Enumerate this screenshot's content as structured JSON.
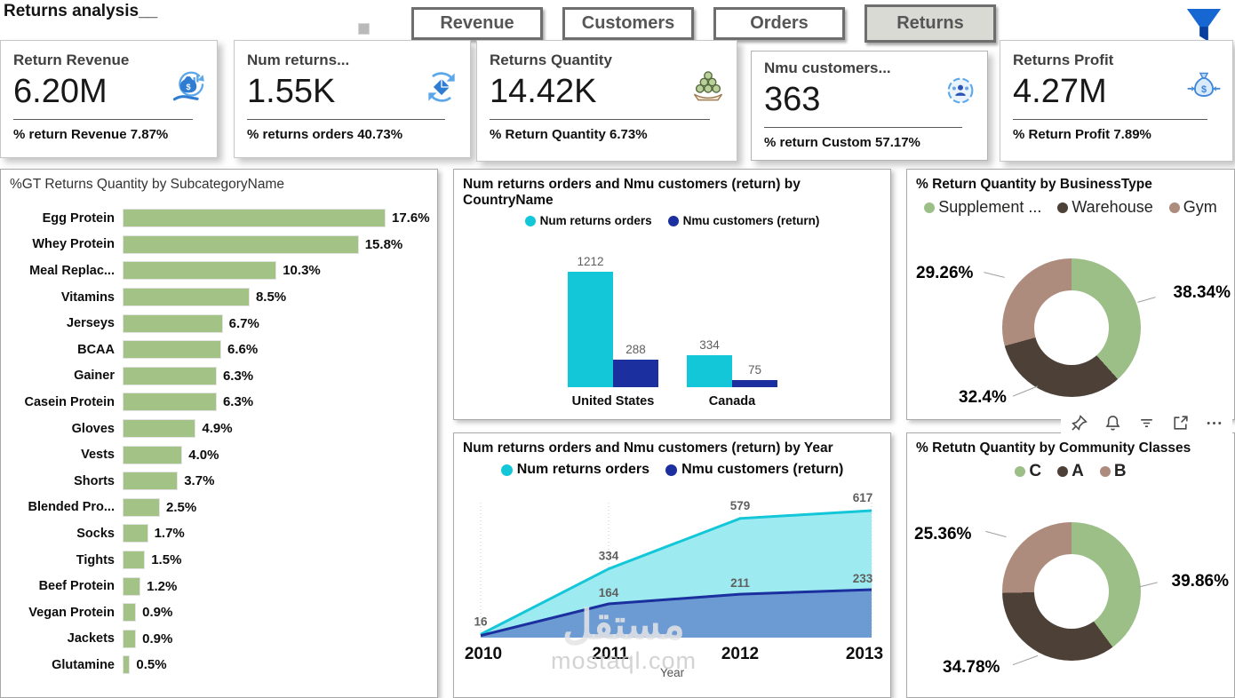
{
  "page": {
    "title": "Returns analysis__"
  },
  "nav": {
    "buttons": [
      {
        "label": "Revenue",
        "active": false
      },
      {
        "label": "Customers",
        "active": false
      },
      {
        "label": "Orders",
        "active": false
      },
      {
        "label": "Returns",
        "active": true
      }
    ]
  },
  "kpis": [
    {
      "title": "Return Revenue",
      "value": "6.20M",
      "subtitle": "% return Revenue",
      "sub_value": "7.87%",
      "icon": "money-hand-icon"
    },
    {
      "title": "Num returns...",
      "value": "1.55K",
      "subtitle": "% returns orders",
      "sub_value": "40.73%",
      "icon": "box-return-icon"
    },
    {
      "title": "Returns Quantity",
      "value": "14.42K",
      "subtitle": "% Return Quantity",
      "sub_value": "6.73%",
      "icon": "coins-hand-icon"
    },
    {
      "title": "Nmu customers...",
      "value": "363",
      "subtitle": "% return Custom",
      "sub_value": "57.17%",
      "icon": "customers-globe-icon"
    },
    {
      "title": "Returns Profit",
      "value": "4.27M",
      "subtitle": "% Return Profit",
      "sub_value": "7.89%",
      "icon": "money-bag-icon"
    }
  ],
  "chart_data": [
    {
      "id": "subcategory",
      "type": "bar",
      "orientation": "horizontal",
      "title": "%GT Returns Quantity by SubcategoryName",
      "categories": [
        "Egg Protein",
        "Whey Protein",
        "Meal Replac...",
        "Vitamins",
        "Jerseys",
        "BCAA",
        "Gainer",
        "Casein Protein",
        "Gloves",
        "Vests",
        "Shorts",
        "Blended Pro...",
        "Socks",
        "Tights",
        "Beef Protein",
        "Vegan Protein",
        "Jackets",
        "Glutamine"
      ],
      "values": [
        17.6,
        15.8,
        10.3,
        8.5,
        6.7,
        6.6,
        6.3,
        6.3,
        4.9,
        4.0,
        3.7,
        2.5,
        1.7,
        1.5,
        1.2,
        0.9,
        0.9,
        0.5
      ],
      "labels": [
        "17.6%",
        "15.8%",
        "10.3%",
        "8.5%",
        "6.7%",
        "6.6%",
        "6.3%",
        "6.3%",
        "4.9%",
        "4.0%",
        "3.7%",
        "2.5%",
        "1.7%",
        "1.5%",
        "1.2%",
        "0.9%",
        "0.9%",
        "0.5%"
      ],
      "bar_color": "#a3c286",
      "xlim": [
        0,
        18
      ]
    },
    {
      "id": "country",
      "type": "bar",
      "orientation": "vertical",
      "title": "Num returns orders and Nmu customers (return) by CountryName",
      "categories": [
        "United States",
        "Canada"
      ],
      "series": [
        {
          "name": "Num returns orders",
          "color": "#13c6d8",
          "values": [
            1212,
            334
          ]
        },
        {
          "name": "Nmu customers (return)",
          "color": "#1b2f9e",
          "values": [
            288,
            75
          ]
        }
      ],
      "ylim": [
        0,
        1300
      ],
      "legend_position": "top"
    },
    {
      "id": "year",
      "type": "area",
      "title": "Num returns orders and Nmu customers (return) by Year",
      "x": [
        "2010",
        "2011",
        "2012",
        "2013"
      ],
      "xlabel": "Year",
      "series": [
        {
          "name": "Num returns orders",
          "color": "#13c6d8",
          "fill": "#9debf0",
          "values": [
            16,
            334,
            579,
            617
          ],
          "labels": [
            "16",
            "334",
            "579",
            "617"
          ]
        },
        {
          "name": "Nmu customers (return)",
          "color": "#1b2f9e",
          "fill": "#6c9bd3",
          "values": [
            10,
            164,
            211,
            233
          ],
          "labels": [
            "",
            "164",
            "211",
            "233"
          ]
        }
      ],
      "ylim": [
        0,
        650
      ],
      "grid": "dotted-vertical",
      "legend_position": "top"
    },
    {
      "id": "business",
      "type": "pie",
      "title": "% Return Quantity by BusinessType",
      "categories": [
        "Supplement ...",
        "Warehouse",
        "Gym"
      ],
      "values": [
        38.34,
        32.4,
        29.26
      ],
      "labels": [
        "38.34%",
        "32.4%",
        "29.26%"
      ],
      "colors": [
        "#9cbf88",
        "#4c4037",
        "#ad8b7d"
      ],
      "hole": 0.54,
      "legend_position": "top"
    },
    {
      "id": "community",
      "type": "pie",
      "title": "% Retutn Quantity by Community Classes",
      "categories": [
        "C",
        "A",
        "B"
      ],
      "values": [
        39.86,
        34.78,
        25.36
      ],
      "labels": [
        "39.86%",
        "34.78%",
        "25.36%"
      ],
      "colors": [
        "#9cbf88",
        "#4c4037",
        "#ad8b7d"
      ],
      "hole": 0.54,
      "legend_position": "top"
    }
  ],
  "watermark": {
    "line1": "مستقل",
    "line2": "mostaql.com"
  },
  "hover_toolbar": {
    "icons": [
      "pin-icon",
      "bell-icon",
      "filter-lines-icon",
      "focus-mode-icon",
      "more-options-icon"
    ]
  },
  "colors": {
    "accent_cyan": "#13c6d8",
    "accent_navy": "#1b2f9e",
    "bar_green": "#a3c286",
    "donut_green": "#9cbf88",
    "donut_brown": "#4c4037",
    "donut_rose": "#ad8b7d",
    "area_cyan_fill": "#9debf0",
    "area_navy_fill": "#6c9bd3",
    "funnel_blue": "#1767d2",
    "nav_active_bg": "#dadad5"
  }
}
